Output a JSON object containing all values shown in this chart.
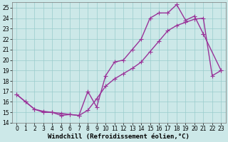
{
  "xlabel": "Windchill (Refroidissement éolien,°C)",
  "xlim": [
    -0.5,
    23.5
  ],
  "ylim": [
    14,
    25.5
  ],
  "xticks": [
    0,
    1,
    2,
    3,
    4,
    5,
    6,
    7,
    8,
    9,
    10,
    11,
    12,
    13,
    14,
    15,
    16,
    17,
    18,
    19,
    20,
    21,
    22,
    23
  ],
  "yticks": [
    14,
    15,
    16,
    17,
    18,
    19,
    20,
    21,
    22,
    23,
    24,
    25
  ],
  "line_color": "#993399",
  "bg_color": "#cce8e8",
  "grid_color": "#99cccc",
  "curve1_x": [
    0,
    1,
    2,
    3,
    4,
    5,
    6,
    7,
    8,
    9,
    10,
    11,
    12,
    13,
    14,
    15,
    16,
    17,
    18,
    19,
    20,
    21,
    22,
    23
  ],
  "curve1_y": [
    16.7,
    16.0,
    15.3,
    15.0,
    15.0,
    14.7,
    14.8,
    14.7,
    17.0,
    15.5,
    18.5,
    19.8,
    20.0,
    21.0,
    22.0,
    24.0,
    24.5,
    24.5,
    25.3,
    23.8,
    24.2,
    22.5,
    null,
    19.0
  ],
  "curve2_x": [
    0,
    1,
    2,
    3,
    4,
    5,
    6,
    7,
    8,
    9,
    10,
    11,
    12,
    13,
    14,
    15,
    16,
    17,
    18,
    19,
    20,
    21,
    22,
    23
  ],
  "curve2_y": [
    16.7,
    16.0,
    15.3,
    15.1,
    15.0,
    14.9,
    14.8,
    14.7,
    15.2,
    16.3,
    17.5,
    18.2,
    18.7,
    19.2,
    19.8,
    20.8,
    21.8,
    22.8,
    23.3,
    23.6,
    23.9,
    24.0,
    18.5,
    19.0
  ],
  "marker": "+",
  "markersize": 4,
  "linewidth": 1.0,
  "tick_fontsize": 5.5,
  "label_fontsize": 6.5
}
